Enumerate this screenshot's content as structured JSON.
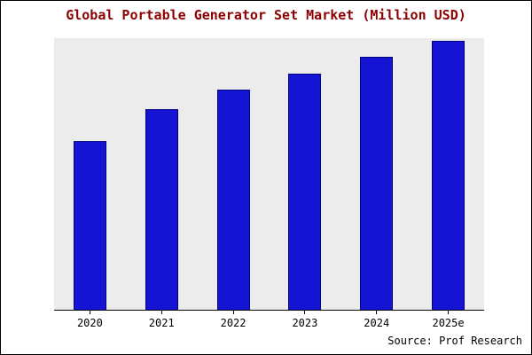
{
  "title": "Global Portable Generator Set Market (Million USD)",
  "source": "Source: Prof Research",
  "colors": {
    "bar_fill": "#1414d2",
    "bar_border": "#000080",
    "title_text": "#8b0000",
    "plot_background": "#ececec",
    "axis": "#000000"
  },
  "chart_data": {
    "type": "bar",
    "categories": [
      "2020",
      "2021",
      "2022",
      "2023",
      "2024",
      "2025e"
    ],
    "values": [
      62,
      74,
      81,
      87,
      93,
      99
    ],
    "title": "Global Portable Generator Set Market (Million USD)",
    "xlabel": "",
    "ylabel": "",
    "ylim": [
      0,
      100
    ],
    "grid": false,
    "legend": false,
    "source": "Source: Prof Research"
  }
}
